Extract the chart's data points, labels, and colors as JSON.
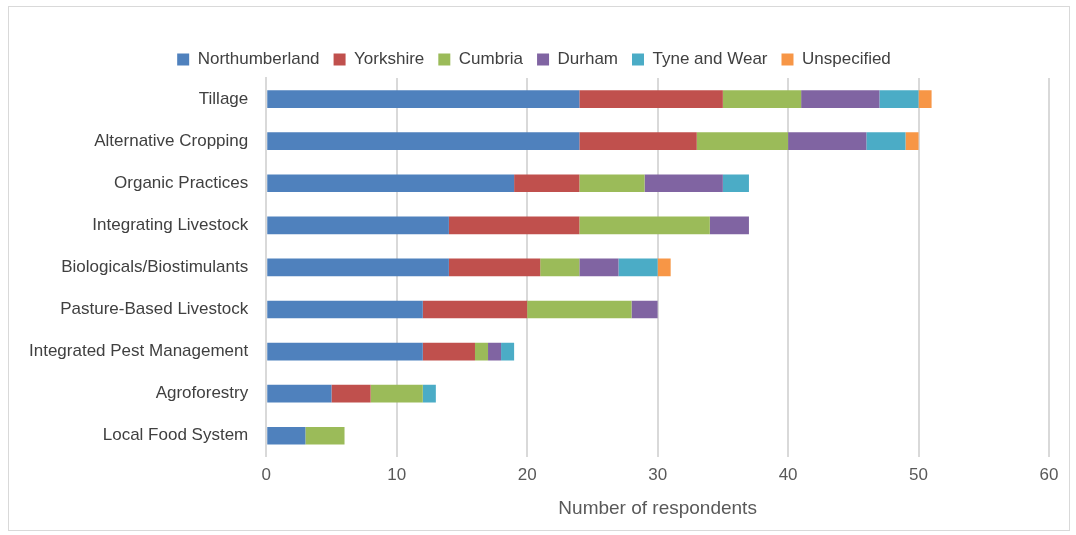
{
  "chart_data": {
    "type": "bar",
    "orientation": "horizontal",
    "stacked": true,
    "xlabel": "Number of respondents",
    "categories": [
      "Tillage",
      "Alternative Cropping",
      "Organic Practices",
      "Integrating Livestock",
      "Biologicals/Biostimulants",
      "Pasture-Based Livestock",
      "Integrated Pest Management",
      "Agroforestry",
      "Local Food System"
    ],
    "series": [
      {
        "name": "Northumberland",
        "color": "#4f81bd",
        "values": [
          24,
          24,
          19,
          14,
          14,
          12,
          12,
          5,
          3
        ]
      },
      {
        "name": "Yorkshire",
        "color": "#c0504d",
        "values": [
          11,
          9,
          5,
          10,
          7,
          8,
          4,
          3,
          null
        ]
      },
      {
        "name": "Cumbria",
        "color": "#9bbb59",
        "values": [
          6,
          7,
          5,
          10,
          3,
          8,
          1,
          4,
          3
        ]
      },
      {
        "name": "Durham",
        "color": "#8064a2",
        "values": [
          6,
          6,
          6,
          3,
          3,
          2,
          1,
          null,
          null
        ]
      },
      {
        "name": "Tyne and Wear",
        "color": "#4bacc6",
        "values": [
          3,
          3,
          2,
          null,
          3,
          null,
          1,
          1,
          null
        ]
      },
      {
        "name": "Unspecified",
        "color": "#f79646",
        "values": [
          1,
          1,
          null,
          null,
          1,
          null,
          null,
          null,
          null
        ]
      }
    ],
    "xlim": [
      0,
      60
    ],
    "xticks": [
      0,
      10,
      20,
      30,
      40,
      50,
      60
    ],
    "grid": "x",
    "legend": "top"
  }
}
